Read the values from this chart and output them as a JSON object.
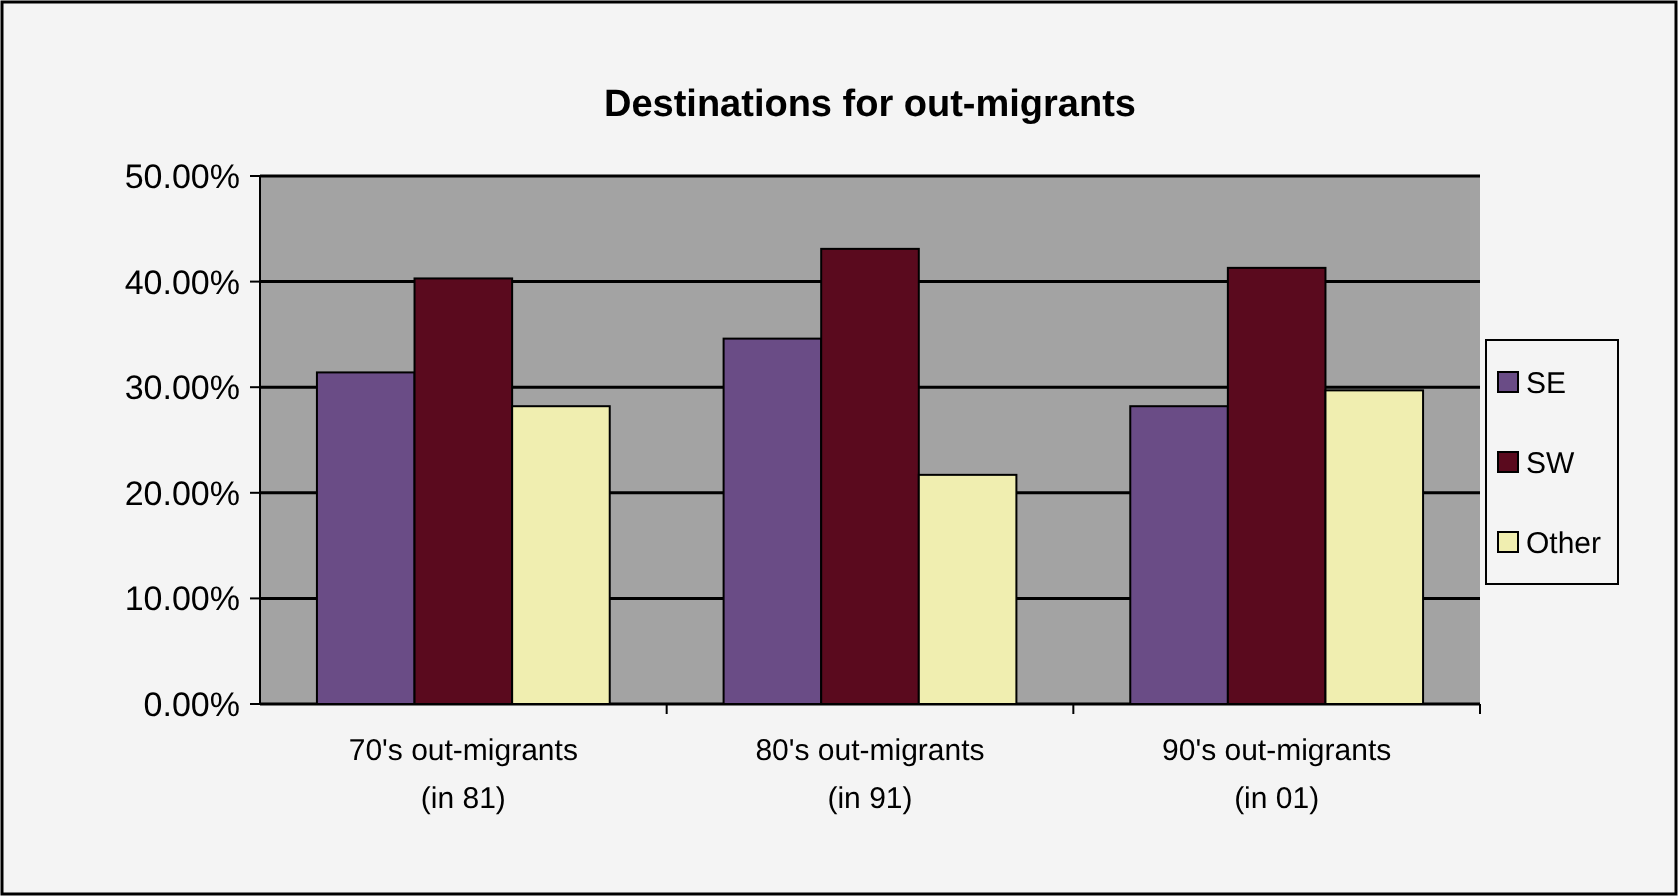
{
  "chart_data": {
    "type": "bar",
    "title": "Destinations for out-migrants",
    "categories": [
      "70's out-migrants\n(in 81)",
      "80's out-migrants\n(in 91)",
      "90's out-migrants\n(in 01)"
    ],
    "series": [
      {
        "name": "SE",
        "color": "#6a4c86",
        "values": [
          31.4,
          34.6,
          28.2
        ]
      },
      {
        "name": "SW",
        "color": "#5a0a1e",
        "values": [
          40.3,
          43.1,
          41.3
        ]
      },
      {
        "name": "Other",
        "color": "#f0eeb0",
        "values": [
          28.2,
          21.7,
          29.7
        ]
      }
    ],
    "ylim": [
      0,
      50
    ],
    "yticks": [
      {
        "value": 0,
        "label": "0.00%"
      },
      {
        "value": 10,
        "label": "10.00%"
      },
      {
        "value": 20,
        "label": "20.00%"
      },
      {
        "value": 30,
        "label": "30.00%"
      },
      {
        "value": 40,
        "label": "40.00%"
      },
      {
        "value": 50,
        "label": "50.00%"
      }
    ],
    "grid": "y",
    "legend": "right"
  }
}
